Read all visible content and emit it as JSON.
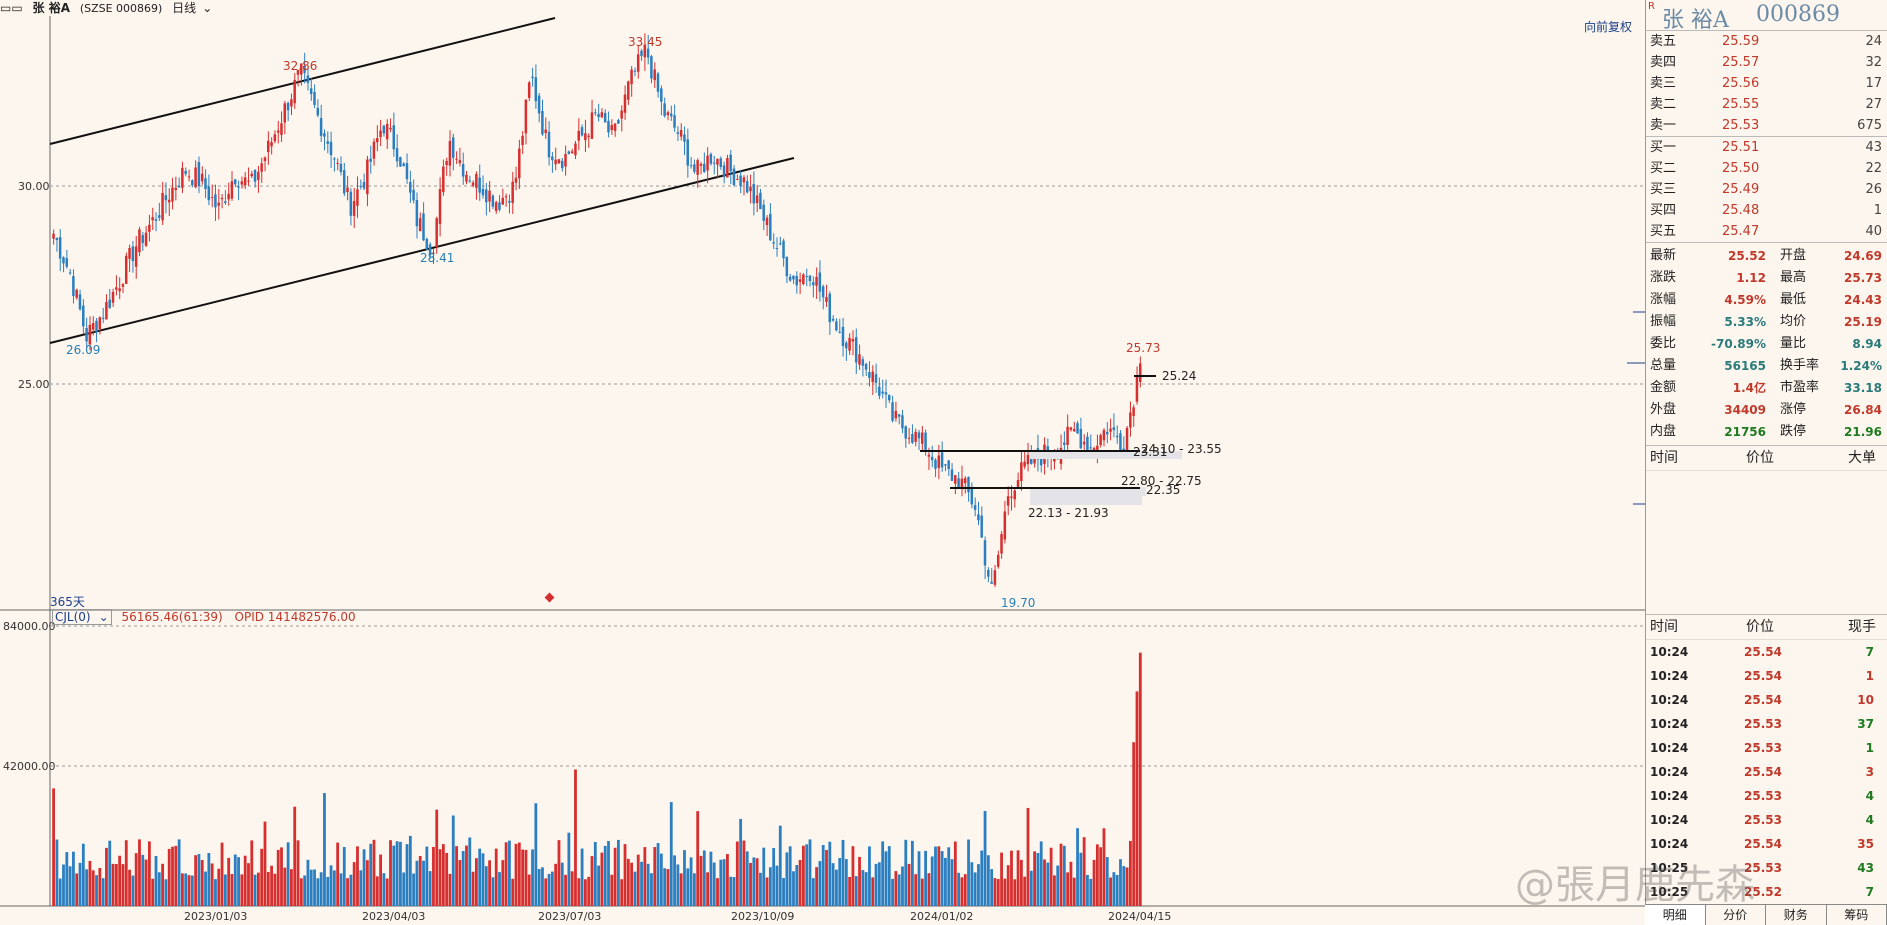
{
  "header": {
    "stock_name": "张 裕A",
    "exchange_code": "(SZSE 000869)",
    "period": "日线"
  },
  "restore_label": "向前复权",
  "days_label": "365天",
  "volume_legend": {
    "indicator": "CJL(0)",
    "value": "56165.46(61:39)",
    "opid": "OPID 141482576.00"
  },
  "annotations": {
    "high1": "32.86",
    "high2": "33.45",
    "low1": "26.09",
    "low2": "28.41",
    "low3": "19.70",
    "last_high": "25.73",
    "level_2524": "25.24",
    "zone1": "24.10 - 23.55",
    "zone1b": "23.31",
    "zone2": "22.80 - 22.75",
    "zone2b": "22.35",
    "zone3": "22.13 - 21.93"
  },
  "price_axis": {
    "t30": "30.00",
    "t25": "25.00"
  },
  "volume_axis": {
    "t84": "84000.00",
    "t42": "42000.00"
  },
  "date_axis": [
    "2023/01/03",
    "2023/04/03",
    "2023/07/03",
    "2023/10/09",
    "2024/01/02",
    "2024/04/15"
  ],
  "quote": {
    "flag": "R",
    "name": "张 裕A",
    "code": "000869",
    "asks": [
      {
        "label": "卖五",
        "price": "25.59",
        "vol": "24"
      },
      {
        "label": "卖四",
        "price": "25.57",
        "vol": "32"
      },
      {
        "label": "卖三",
        "price": "25.56",
        "vol": "17"
      },
      {
        "label": "卖二",
        "price": "25.55",
        "vol": "27"
      },
      {
        "label": "卖一",
        "price": "25.53",
        "vol": "675"
      }
    ],
    "bids": [
      {
        "label": "买一",
        "price": "25.51",
        "vol": "43"
      },
      {
        "label": "买二",
        "price": "25.50",
        "vol": "22"
      },
      {
        "label": "买三",
        "price": "25.49",
        "vol": "26"
      },
      {
        "label": "买四",
        "price": "25.48",
        "vol": "1"
      },
      {
        "label": "买五",
        "price": "25.47",
        "vol": "40"
      }
    ],
    "stats": [
      {
        "l1": "最新",
        "v1": "25.52",
        "c1": "red",
        "l2": "开盘",
        "v2": "24.69",
        "c2": "red"
      },
      {
        "l1": "涨跌",
        "v1": "1.12",
        "c1": "red",
        "l2": "最高",
        "v2": "25.73",
        "c2": "red"
      },
      {
        "l1": "涨幅",
        "v1": "4.59%",
        "c1": "red",
        "l2": "最低",
        "v2": "24.43",
        "c2": "red"
      },
      {
        "l1": "振幅",
        "v1": "5.33%",
        "c1": "teal",
        "l2": "均价",
        "v2": "25.19",
        "c2": "red"
      },
      {
        "l1": "委比",
        "v1": "-70.89%",
        "c1": "teal",
        "l2": "量比",
        "v2": "8.94",
        "c2": "teal"
      },
      {
        "l1": "总量",
        "v1": "56165",
        "c1": "teal",
        "l2": "换手率",
        "v2": "1.24%",
        "c2": "teal"
      },
      {
        "l1": "金额",
        "v1": "1.4亿",
        "c1": "red",
        "l2": "市盈率",
        "v2": "33.18",
        "c2": "teal"
      },
      {
        "l1": "外盘",
        "v1": "34409",
        "c1": "red",
        "l2": "涨停",
        "v2": "26.84",
        "c2": "red"
      },
      {
        "l1": "内盘",
        "v1": "21756",
        "c1": "green",
        "l2": "跌停",
        "v2": "21.96",
        "c2": "green"
      }
    ],
    "big_orders_head": {
      "time": "时间",
      "price": "价位",
      "big": "大单"
    },
    "ticks_head": {
      "time": "时间",
      "price": "价位",
      "vol": "现手"
    },
    "ticks": [
      {
        "time": "10:24",
        "price": "25.54",
        "vol": "7",
        "c": "green"
      },
      {
        "time": "10:24",
        "price": "25.54",
        "vol": "1",
        "c": "red"
      },
      {
        "time": "10:24",
        "price": "25.54",
        "vol": "10",
        "c": "red"
      },
      {
        "time": "10:24",
        "price": "25.53",
        "vol": "37",
        "c": "green"
      },
      {
        "time": "10:24",
        "price": "25.53",
        "vol": "1",
        "c": "green"
      },
      {
        "time": "10:24",
        "price": "25.54",
        "vol": "3",
        "c": "red"
      },
      {
        "time": "10:24",
        "price": "25.53",
        "vol": "4",
        "c": "green"
      },
      {
        "time": "10:24",
        "price": "25.53",
        "vol": "4",
        "c": "green"
      },
      {
        "time": "10:24",
        "price": "25.54",
        "vol": "35",
        "c": "red"
      },
      {
        "time": "10:25",
        "price": "25.53",
        "vol": "43",
        "c": "green"
      },
      {
        "time": "10:25",
        "price": "25.52",
        "vol": "7",
        "c": "green"
      }
    ]
  },
  "tabs": [
    "明细",
    "分价",
    "财务",
    "筹码"
  ],
  "watermark": "@張月鹿先森",
  "colors": {
    "up": "#d62f2f",
    "down": "#2b7fc1",
    "bg": "#fdf6ee"
  },
  "chart_data": {
    "type": "candlestick",
    "title": "",
    "x_range": [
      "2022-10",
      "2024-04-15"
    ],
    "key_prices": {
      "high": 33.45,
      "high_prev": 32.86,
      "low": 19.7,
      "low_prev": 26.09,
      "mid_low": 28.41,
      "last": 25.52,
      "last_high": 25.73
    },
    "price_path": [
      28.8,
      27.8,
      26.2,
      26.8,
      27.6,
      28.5,
      29.1,
      29.8,
      30.4,
      30.1,
      29.4,
      30.3,
      30.0,
      30.9,
      31.9,
      32.86,
      31.8,
      30.8,
      29.5,
      30.3,
      31.6,
      30.8,
      29.2,
      28.41,
      31.2,
      30.4,
      30.0,
      29.6,
      30.0,
      32.8,
      31.0,
      30.7,
      31.2,
      31.8,
      31.2,
      32.6,
      33.45,
      31.9,
      31.3,
      30.3,
      30.8,
      30.4,
      30.1,
      29.3,
      28.4,
      27.6,
      27.9,
      26.9,
      26.2,
      25.7,
      25.0,
      24.1,
      23.8,
      23.4,
      22.8,
      22.6,
      21.9,
      19.7,
      22.3,
      22.9,
      23.2,
      23.4,
      23.8,
      23.4,
      23.9,
      23.5,
      25.52
    ],
    "volume_max_label": 84000,
    "volume_last": 56165.46
  }
}
